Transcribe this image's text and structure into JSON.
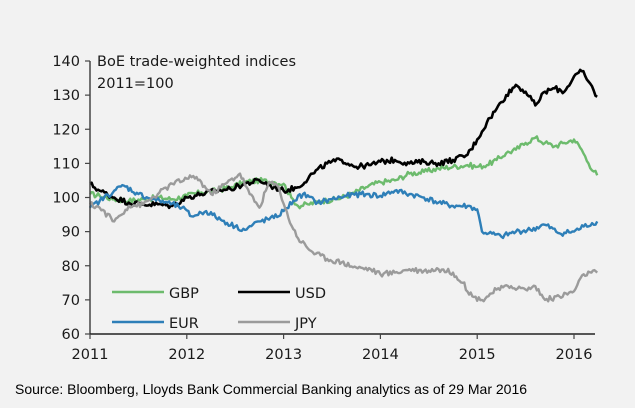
{
  "chart_data": {
    "type": "line",
    "title": "BoE trade-weighted indices",
    "subtitle": "2011=100",
    "xlabel": "",
    "ylabel": "",
    "xlim": [
      2011,
      2016.25
    ],
    "ylim": [
      60,
      140
    ],
    "x_ticks": [
      2011,
      2012,
      2013,
      2014,
      2015,
      2016
    ],
    "x_tick_labels": [
      "2011",
      "2012",
      "2013",
      "2014",
      "2015",
      "2016"
    ],
    "y_ticks": [
      60,
      70,
      80,
      90,
      100,
      110,
      120,
      130,
      140
    ],
    "y_tick_labels": [
      "60",
      "70",
      "80",
      "90",
      "100",
      "110",
      "120",
      "130",
      "140"
    ],
    "grid": false,
    "legend": {
      "placement": "bottom-left",
      "columns": 2
    },
    "source": "Source: Bloomberg, Lloyds Bank Commercial Banking analytics as of 29 Mar 2016",
    "series": [
      {
        "name": "GBP",
        "color": "#6dbb6d",
        "x": [
          2011.0,
          2011.1,
          2011.25,
          2011.4,
          2011.55,
          2011.7,
          2011.85,
          2012.0,
          2012.15,
          2012.3,
          2012.45,
          2012.6,
          2012.75,
          2012.9,
          2013.0,
          2013.08,
          2013.15,
          2013.25,
          2013.4,
          2013.55,
          2013.7,
          2013.85,
          2014.0,
          2014.15,
          2014.3,
          2014.45,
          2014.6,
          2014.75,
          2014.9,
          2015.0,
          2015.1,
          2015.2,
          2015.3,
          2015.4,
          2015.5,
          2015.6,
          2015.7,
          2015.8,
          2015.9,
          2016.0,
          2016.08,
          2016.15,
          2016.24
        ],
        "values": [
          101,
          100.5,
          99.5,
          99,
          99.5,
          100,
          99.5,
          100.5,
          101.5,
          102,
          103,
          104.5,
          105,
          104.5,
          104,
          100,
          97.5,
          98,
          99,
          99.5,
          101,
          103,
          104.5,
          105,
          107,
          107.5,
          108.5,
          109,
          109.5,
          109,
          109.5,
          111,
          113,
          114,
          116,
          117.5,
          116,
          115,
          116,
          117,
          114,
          110,
          106.5
        ]
      },
      {
        "name": "USD",
        "color": "#000000",
        "x": [
          2011.0,
          2011.1,
          2011.25,
          2011.4,
          2011.55,
          2011.7,
          2011.85,
          2012.0,
          2012.15,
          2012.3,
          2012.45,
          2012.6,
          2012.75,
          2012.9,
          2013.0,
          2013.15,
          2013.3,
          2013.45,
          2013.6,
          2013.75,
          2013.9,
          2014.0,
          2014.15,
          2014.3,
          2014.45,
          2014.6,
          2014.75,
          2014.9,
          2015.0,
          2015.1,
          2015.2,
          2015.3,
          2015.4,
          2015.5,
          2015.6,
          2015.7,
          2015.8,
          2015.9,
          2016.0,
          2016.08,
          2016.15,
          2016.24
        ],
        "values": [
          104,
          102,
          100,
          98.5,
          98,
          98,
          97.5,
          100,
          101,
          102,
          102.5,
          104,
          105,
          103,
          102,
          103,
          107,
          110,
          111,
          109,
          109.5,
          110.5,
          111,
          110,
          110.5,
          110,
          111,
          112.5,
          117,
          122,
          126,
          130,
          133,
          131,
          127,
          131,
          132,
          131,
          135.5,
          137,
          134,
          129.5
        ]
      },
      {
        "name": "EUR",
        "color": "#2e7fb8",
        "x": [
          2011.0,
          2011.1,
          2011.25,
          2011.35,
          2011.5,
          2011.65,
          2011.8,
          2011.95,
          2012.05,
          2012.2,
          2012.35,
          2012.5,
          2012.6,
          2012.75,
          2012.9,
          2013.0,
          2013.1,
          2013.2,
          2013.35,
          2013.5,
          2013.65,
          2013.8,
          2014.0,
          2014.15,
          2014.3,
          2014.45,
          2014.6,
          2014.75,
          2014.9,
          2015.0,
          2015.05,
          2015.12,
          2015.25,
          2015.4,
          2015.55,
          2015.7,
          2015.85,
          2016.0,
          2016.1,
          2016.24
        ],
        "values": [
          97,
          99,
          102,
          103.5,
          101,
          99.5,
          98.5,
          97,
          94.5,
          96,
          93.5,
          91.5,
          90.5,
          93,
          94,
          96,
          99,
          101,
          98.5,
          99.5,
          100.5,
          101,
          100.5,
          102,
          101,
          100,
          98.5,
          97.5,
          97.5,
          96.5,
          90,
          89.5,
          88.5,
          90,
          90.5,
          92,
          89.5,
          90,
          91.5,
          93
        ]
      },
      {
        "name": "JPY",
        "color": "#9b9b9b",
        "x": [
          2011.0,
          2011.1,
          2011.25,
          2011.4,
          2011.55,
          2011.7,
          2011.85,
          2012.0,
          2012.1,
          2012.25,
          2012.4,
          2012.55,
          2012.65,
          2012.75,
          2012.85,
          2012.95,
          2013.05,
          2013.15,
          2013.3,
          2013.45,
          2013.6,
          2013.75,
          2013.9,
          2014.0,
          2014.15,
          2014.3,
          2014.45,
          2014.6,
          2014.75,
          2014.85,
          2014.95,
          2015.05,
          2015.2,
          2015.35,
          2015.5,
          2015.6,
          2015.7,
          2015.85,
          2016.0,
          2016.1,
          2016.18,
          2016.24
        ],
        "values": [
          98,
          97,
          93,
          97.5,
          98,
          101,
          104,
          105.5,
          106,
          101,
          104,
          107,
          101,
          97,
          104.5,
          103,
          94,
          88,
          84,
          82,
          81,
          79.5,
          79,
          77.5,
          78,
          79,
          78.5,
          79,
          78,
          75,
          71,
          70,
          73,
          74,
          73,
          74,
          70,
          71,
          72.5,
          77.5,
          78,
          78
        ]
      }
    ]
  }
}
